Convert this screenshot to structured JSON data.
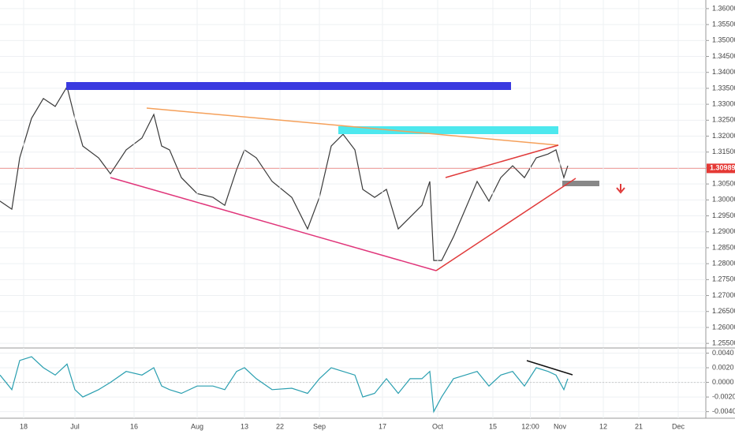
{
  "chart_data": [
    {
      "type": "line",
      "color": "#3a3a3a",
      "last_price": 1.30989,
      "last_price_color": "#e53935",
      "x": [
        163,
        166,
        168,
        171,
        174,
        177,
        180,
        182,
        184,
        188,
        191,
        195,
        199,
        202,
        204,
        206,
        209,
        213,
        217,
        220,
        223,
        225,
        228,
        232,
        237,
        241,
        244,
        247,
        250,
        253,
        255,
        258,
        261,
        264,
        267,
        270,
        272,
        273,
        275,
        278,
        281,
        284,
        287,
        290,
        293,
        296,
        299,
        302,
        304,
        306,
        307
      ],
      "values": [
        1.2996,
        1.2971,
        1.3132,
        1.3256,
        1.3318,
        1.3293,
        1.3355,
        1.3256,
        1.3169,
        1.3132,
        1.3082,
        1.3157,
        1.3194,
        1.3268,
        1.3169,
        1.3157,
        1.307,
        1.302,
        1.3008,
        1.2983,
        1.3095,
        1.3157,
        1.3132,
        1.3058,
        1.3008,
        1.2909,
        1.3008,
        1.3169,
        1.3206,
        1.3157,
        1.3033,
        1.3008,
        1.3033,
        1.2909,
        1.2946,
        1.2983,
        1.3058,
        1.281,
        1.281,
        1.2884,
        1.2971,
        1.3058,
        1.2996,
        1.307,
        1.3107,
        1.307,
        1.3132,
        1.3144,
        1.3157,
        1.307,
        1.3107
      ],
      "xlim": [
        163,
        342
      ],
      "ylim": [
        1.2538,
        1.3627
      ],
      "yticks": [
        {
          "value": 1.36,
          "label": "1.36000"
        },
        {
          "value": 1.355,
          "label": "1.35500"
        },
        {
          "value": 1.35,
          "label": "1.35000"
        },
        {
          "value": 1.345,
          "label": "1.34500"
        },
        {
          "value": 1.34,
          "label": "1.34000"
        },
        {
          "value": 1.335,
          "label": "1.33500"
        },
        {
          "value": 1.33,
          "label": "1.33000"
        },
        {
          "value": 1.325,
          "label": "1.32500"
        },
        {
          "value": 1.32,
          "label": "1.32000"
        },
        {
          "value": 1.315,
          "label": "1.31500"
        },
        {
          "value": 1.31,
          "label": "1.31000"
        },
        {
          "value": 1.305,
          "label": "1.30500"
        },
        {
          "value": 1.3,
          "label": "1.30000"
        },
        {
          "value": 1.295,
          "label": "1.29500"
        },
        {
          "value": 1.29,
          "label": "1.29000"
        },
        {
          "value": 1.285,
          "label": "1.28500"
        },
        {
          "value": 1.28,
          "label": "1.28000"
        },
        {
          "value": 1.275,
          "label": "1.27500"
        },
        {
          "value": 1.27,
          "label": "1.27000"
        },
        {
          "value": 1.265,
          "label": "1.26500"
        },
        {
          "value": 1.26,
          "label": "1.26000"
        },
        {
          "value": 1.255,
          "label": "1.25500"
        }
      ]
    },
    {
      "type": "line",
      "color": "#2a9fb0",
      "x": [
        163,
        166,
        168,
        171,
        174,
        177,
        180,
        182,
        184,
        188,
        191,
        195,
        199,
        202,
        204,
        206,
        209,
        213,
        217,
        220,
        223,
        225,
        228,
        232,
        237,
        241,
        244,
        247,
        250,
        253,
        255,
        258,
        261,
        264,
        267,
        270,
        272,
        273,
        275,
        278,
        281,
        284,
        287,
        290,
        293,
        296,
        299,
        302,
        304,
        306,
        307
      ],
      "values": [
        0.001,
        -0.001,
        0.003,
        0.0035,
        0.002,
        0.001,
        0.0025,
        -0.001,
        -0.002,
        -0.001,
        0,
        0.0015,
        0.001,
        0.002,
        -0.0005,
        -0.001,
        -0.0015,
        -0.0005,
        -0.0005,
        -0.001,
        0.0015,
        0.002,
        0.0005,
        -0.001,
        -0.0008,
        -0.0015,
        0.0005,
        0.002,
        0.0015,
        0.001,
        -0.002,
        -0.0015,
        0.0005,
        -0.0015,
        0.0005,
        0.0005,
        0.0015,
        -0.004,
        -0.002,
        0.0005,
        0.001,
        0.0015,
        -0.0005,
        0.001,
        0.0015,
        -0.0005,
        0.002,
        0.0015,
        0.001,
        -0.001,
        0.0005
      ],
      "xlim": [
        163,
        342
      ],
      "ylim": [
        -0.0049,
        0.0047
      ],
      "yticks": [
        {
          "value": 0.004,
          "label": "0.0040"
        },
        {
          "value": 0.002,
          "label": "0.0020"
        },
        {
          "value": 0,
          "label": "0.0000"
        },
        {
          "value": -0.002,
          "label": "-0.0020"
        },
        {
          "value": -0.004,
          "label": "-0.0040"
        }
      ],
      "xticks": [
        {
          "value": 169,
          "label": "18"
        },
        {
          "value": 182,
          "label": "Jul"
        },
        {
          "value": 197,
          "label": "16"
        },
        {
          "value": 213,
          "label": "Aug"
        },
        {
          "value": 225,
          "label": "13"
        },
        {
          "value": 234,
          "label": "22"
        },
        {
          "value": 244,
          "label": "Sep"
        },
        {
          "value": 260,
          "label": "17"
        },
        {
          "value": 274,
          "label": "Oct"
        },
        {
          "value": 288,
          "label": "15"
        },
        {
          "value": 297.5,
          "label": "12:00"
        },
        {
          "value": 305,
          "label": "Nov"
        },
        {
          "value": 316,
          "label": "12"
        },
        {
          "value": 325,
          "label": "21"
        },
        {
          "value": 335,
          "label": "Dec"
        }
      ]
    }
  ]
}
